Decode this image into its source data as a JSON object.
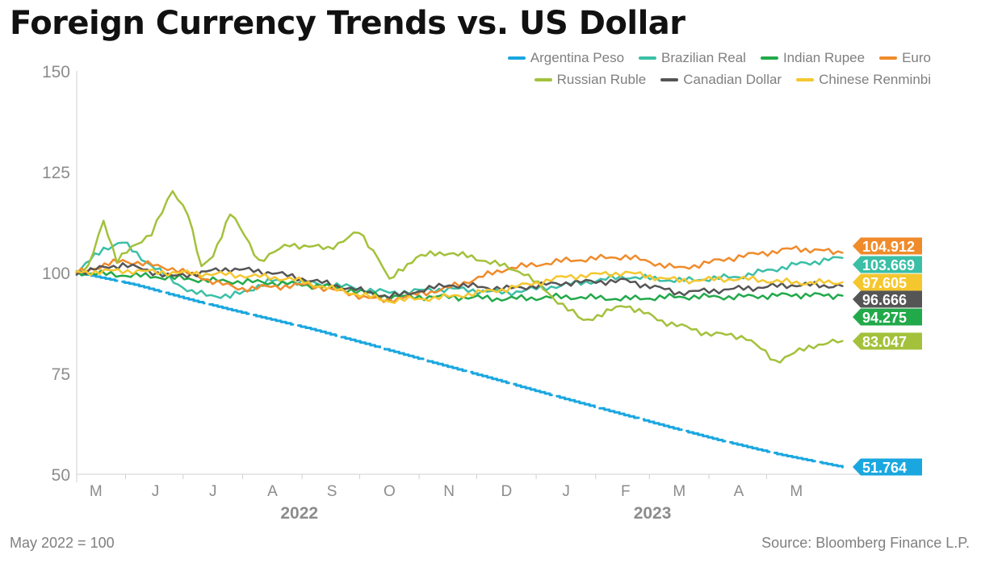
{
  "title": "Foreign Currency Trends vs. US Dollar",
  "note": "May 2022 = 100",
  "source": "Source: Bloomberg Finance L.P.",
  "chart_data": {
    "type": "line",
    "ylim": [
      50,
      150
    ],
    "yticks": [
      50,
      75,
      100,
      125,
      150
    ],
    "grid": false,
    "legend_position": "top-right",
    "x_start": "2022-04-21",
    "x_end": "2023-06-01",
    "month_labels": [
      {
        "label": "M",
        "date": "2022-05-01"
      },
      {
        "label": "J",
        "date": "2022-06-01"
      },
      {
        "label": "J",
        "date": "2022-07-01"
      },
      {
        "label": "A",
        "date": "2022-08-01"
      },
      {
        "label": "S",
        "date": "2022-09-01"
      },
      {
        "label": "O",
        "date": "2022-10-01"
      },
      {
        "label": "N",
        "date": "2022-11-01"
      },
      {
        "label": "D",
        "date": "2022-12-01"
      },
      {
        "label": "J",
        "date": "2023-01-01"
      },
      {
        "label": "F",
        "date": "2023-02-01"
      },
      {
        "label": "M",
        "date": "2023-03-01"
      },
      {
        "label": "A",
        "date": "2023-04-01"
      },
      {
        "label": "M",
        "date": "2023-05-01"
      }
    ],
    "year_labels": [
      {
        "label": "2022",
        "date": "2022-08-15"
      },
      {
        "label": "2023",
        "date": "2023-02-15"
      }
    ],
    "series": [
      {
        "name": "Argentina Peso",
        "color": "#1aa7e0",
        "end_label": "51.764",
        "x": [
          "2022-04-21",
          "2022-05-21",
          "2022-06-21",
          "2022-07-21",
          "2022-08-21",
          "2022-09-21",
          "2022-10-21",
          "2022-11-21",
          "2022-12-21",
          "2023-01-21",
          "2023-02-21",
          "2023-03-21",
          "2023-04-21",
          "2023-05-25"
        ],
        "y": [
          100,
          97,
          93,
          89.5,
          86,
          82,
          78,
          74,
          70,
          66,
          62,
          58.5,
          55,
          51.764
        ]
      },
      {
        "name": "Brazilian Real",
        "color": "#3bbfa6",
        "end_label": "103.669",
        "x": [
          "2022-04-21",
          "2022-05-05",
          "2022-05-15",
          "2022-06-01",
          "2022-06-20",
          "2022-07-10",
          "2022-08-01",
          "2022-09-01",
          "2022-10-01",
          "2022-11-01",
          "2022-12-01",
          "2023-01-01",
          "2023-02-01",
          "2023-03-01",
          "2023-04-01",
          "2023-05-01",
          "2023-05-25"
        ],
        "y": [
          100,
          106,
          107.5,
          101,
          95,
          94,
          98,
          97,
          95,
          96,
          95,
          97,
          99,
          98,
          99,
          102,
          103.669
        ]
      },
      {
        "name": "Indian Rupee",
        "color": "#22a94a",
        "end_label": "94.275",
        "x": [
          "2022-04-21",
          "2022-06-01",
          "2022-07-01",
          "2022-08-01",
          "2022-09-01",
          "2022-10-01",
          "2022-11-01",
          "2022-12-01",
          "2023-01-01",
          "2023-02-01",
          "2023-03-01",
          "2023-04-01",
          "2023-05-01",
          "2023-05-25"
        ],
        "y": [
          100,
          99,
          98,
          97.5,
          96.5,
          94,
          94,
          93.5,
          94,
          93.5,
          94,
          94,
          94.5,
          94.275
        ]
      },
      {
        "name": "Euro",
        "color": "#f08b2b",
        "end_label": "104.912",
        "x": [
          "2022-04-21",
          "2022-05-15",
          "2022-06-10",
          "2022-07-14",
          "2022-08-20",
          "2022-09-28",
          "2022-10-30",
          "2022-12-01",
          "2023-01-01",
          "2023-02-01",
          "2023-03-01",
          "2023-04-01",
          "2023-05-01",
          "2023-05-25"
        ],
        "y": [
          100,
          103,
          101,
          96,
          97,
          93,
          96,
          101,
          103,
          104,
          101,
          104,
          106,
          104.912
        ]
      },
      {
        "name": "Russian Ruble",
        "color": "#a3c13b",
        "end_label": "83.047",
        "x": [
          "2022-04-21",
          "2022-04-27",
          "2022-05-05",
          "2022-05-12",
          "2022-05-30",
          "2022-06-10",
          "2022-06-18",
          "2022-06-25",
          "2022-07-01",
          "2022-07-10",
          "2022-07-25",
          "2022-08-10",
          "2022-08-30",
          "2022-09-15",
          "2022-09-25",
          "2022-10-01",
          "2022-10-15",
          "2022-11-01",
          "2022-11-20",
          "2022-12-10",
          "2022-12-25",
          "2023-01-10",
          "2023-02-01",
          "2023-02-20",
          "2023-03-15",
          "2023-04-05",
          "2023-04-20",
          "2023-05-10",
          "2023-05-25"
        ],
        "y": [
          100,
          101,
          113,
          103,
          110,
          120,
          115,
          101,
          104,
          115,
          103,
          107,
          106,
          110,
          104,
          98,
          104,
          105,
          103,
          100,
          94,
          88,
          92,
          88,
          85,
          84,
          78,
          82,
          83.047
        ]
      },
      {
        "name": "Canadian Dollar",
        "color": "#555555",
        "end_label": "96.666",
        "x": [
          "2022-04-21",
          "2022-05-15",
          "2022-06-10",
          "2022-07-10",
          "2022-08-01",
          "2022-09-01",
          "2022-10-01",
          "2022-11-01",
          "2022-12-01",
          "2023-01-01",
          "2023-02-01",
          "2023-03-01",
          "2023-04-01",
          "2023-05-01",
          "2023-05-25"
        ],
        "y": [
          100,
          102,
          99,
          101,
          100,
          97,
          94,
          97,
          96,
          97.5,
          98,
          95,
          96,
          97,
          96.666
        ]
      },
      {
        "name": "Chinese Renminbi",
        "color": "#f5c72f",
        "end_label": "97.605",
        "x": [
          "2022-04-21",
          "2022-05-15",
          "2022-06-10",
          "2022-07-10",
          "2022-08-10",
          "2022-09-01",
          "2022-10-01",
          "2022-11-01",
          "2022-12-01",
          "2023-01-01",
          "2023-02-01",
          "2023-03-01",
          "2023-04-01",
          "2023-05-01",
          "2023-05-25"
        ],
        "y": [
          100,
          100.5,
          100,
          99.5,
          98.5,
          96,
          93,
          94,
          96,
          99,
          100,
          98,
          98.5,
          97.5,
          97.605
        ]
      }
    ],
    "end_label_order": [
      "Euro",
      "Brazilian Real",
      "Chinese Renminbi",
      "Canadian Dollar",
      "Indian Rupee",
      "Russian Ruble",
      "Argentina Peso"
    ]
  }
}
